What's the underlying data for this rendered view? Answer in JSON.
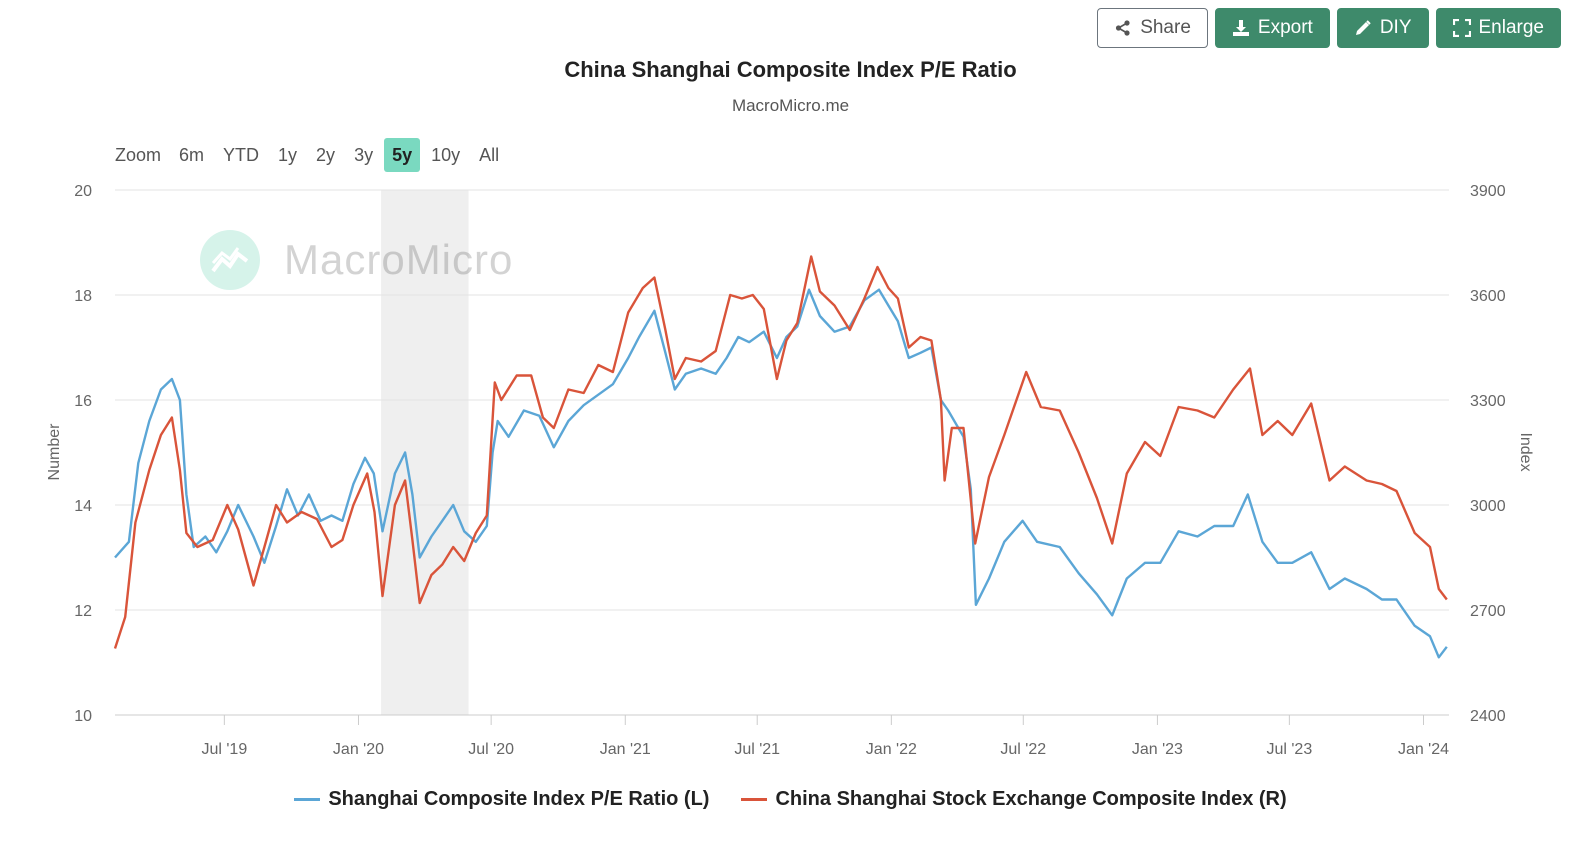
{
  "toolbar": {
    "share": "Share",
    "export": "Export",
    "diy": "DIY",
    "enlarge": "Enlarge"
  },
  "watermark": "MacroMicro",
  "zoom": {
    "label": "Zoom",
    "options": [
      "6m",
      "YTD",
      "1y",
      "2y",
      "3y",
      "5y",
      "10y",
      "All"
    ],
    "active": "5y"
  },
  "colors": {
    "pe": "#5ba6d6",
    "index": "#d9543a",
    "accent": "#3e8a6b",
    "zoom_active": "#7ad9c0"
  },
  "chart_data": {
    "type": "line",
    "title": "China Shanghai Composite Index P/E Ratio",
    "subtitle": "MacroMicro.me",
    "ylabel_left": "Number",
    "ylabel_right": "Index",
    "ylim_left": [
      10,
      20
    ],
    "ylim_right": [
      2400,
      3900
    ],
    "yticks_left": [
      10,
      12,
      14,
      16,
      18,
      20
    ],
    "yticks_right": [
      2400,
      2700,
      3000,
      3300,
      3600,
      3900
    ],
    "xlim": [
      "2019-02-01",
      "2024-02-05"
    ],
    "xticks": [
      {
        "date": "2019-07-01",
        "label": "Jul '19"
      },
      {
        "date": "2020-01-01",
        "label": "Jan '20"
      },
      {
        "date": "2020-07-01",
        "label": "Jul '20"
      },
      {
        "date": "2021-01-01",
        "label": "Jan '21"
      },
      {
        "date": "2021-07-01",
        "label": "Jul '21"
      },
      {
        "date": "2022-01-01",
        "label": "Jan '22"
      },
      {
        "date": "2022-07-01",
        "label": "Jul '22"
      },
      {
        "date": "2023-01-01",
        "label": "Jan '23"
      },
      {
        "date": "2023-07-01",
        "label": "Jul '23"
      },
      {
        "date": "2024-01-01",
        "label": "Jan '24"
      }
    ],
    "shaded_region": [
      "2020-02-01",
      "2020-05-31"
    ],
    "grid": true,
    "legend": "bottom-center",
    "series": [
      {
        "name": "Shanghai Composite Index P/E Ratio (L)",
        "axis": "left",
        "points": [
          [
            "2019-02-01",
            13.0
          ],
          [
            "2019-02-20",
            13.3
          ],
          [
            "2019-03-05",
            14.8
          ],
          [
            "2019-03-20",
            15.6
          ],
          [
            "2019-04-05",
            16.2
          ],
          [
            "2019-04-20",
            16.4
          ],
          [
            "2019-05-01",
            16.0
          ],
          [
            "2019-05-10",
            14.2
          ],
          [
            "2019-05-20",
            13.2
          ],
          [
            "2019-06-05",
            13.4
          ],
          [
            "2019-06-20",
            13.1
          ],
          [
            "2019-07-05",
            13.5
          ],
          [
            "2019-07-20",
            14.0
          ],
          [
            "2019-08-10",
            13.4
          ],
          [
            "2019-08-25",
            12.9
          ],
          [
            "2019-09-10",
            13.6
          ],
          [
            "2019-09-25",
            14.3
          ],
          [
            "2019-10-10",
            13.8
          ],
          [
            "2019-10-25",
            14.2
          ],
          [
            "2019-11-10",
            13.7
          ],
          [
            "2019-11-25",
            13.8
          ],
          [
            "2019-12-10",
            13.7
          ],
          [
            "2019-12-25",
            14.4
          ],
          [
            "2020-01-10",
            14.9
          ],
          [
            "2020-01-22",
            14.6
          ],
          [
            "2020-02-03",
            13.5
          ],
          [
            "2020-02-20",
            14.6
          ],
          [
            "2020-03-05",
            15.0
          ],
          [
            "2020-03-15",
            14.2
          ],
          [
            "2020-03-25",
            13.0
          ],
          [
            "2020-04-10",
            13.4
          ],
          [
            "2020-04-25",
            13.7
          ],
          [
            "2020-05-10",
            14.0
          ],
          [
            "2020-05-25",
            13.5
          ],
          [
            "2020-06-10",
            13.3
          ],
          [
            "2020-06-25",
            13.6
          ],
          [
            "2020-07-03",
            15.0
          ],
          [
            "2020-07-10",
            15.6
          ],
          [
            "2020-07-25",
            15.3
          ],
          [
            "2020-08-15",
            15.8
          ],
          [
            "2020-09-05",
            15.7
          ],
          [
            "2020-09-25",
            15.1
          ],
          [
            "2020-10-15",
            15.6
          ],
          [
            "2020-11-05",
            15.9
          ],
          [
            "2020-11-25",
            16.1
          ],
          [
            "2020-12-15",
            16.3
          ],
          [
            "2021-01-05",
            16.8
          ],
          [
            "2021-01-20",
            17.2
          ],
          [
            "2021-02-10",
            17.7
          ],
          [
            "2021-02-25",
            16.9
          ],
          [
            "2021-03-10",
            16.2
          ],
          [
            "2021-03-25",
            16.5
          ],
          [
            "2021-04-15",
            16.6
          ],
          [
            "2021-05-05",
            16.5
          ],
          [
            "2021-05-20",
            16.8
          ],
          [
            "2021-06-05",
            17.2
          ],
          [
            "2021-06-20",
            17.1
          ],
          [
            "2021-07-10",
            17.3
          ],
          [
            "2021-07-28",
            16.8
          ],
          [
            "2021-08-10",
            17.2
          ],
          [
            "2021-08-25",
            17.4
          ],
          [
            "2021-09-10",
            18.1
          ],
          [
            "2021-09-25",
            17.6
          ],
          [
            "2021-10-15",
            17.3
          ],
          [
            "2021-11-05",
            17.4
          ],
          [
            "2021-11-25",
            17.9
          ],
          [
            "2021-12-15",
            18.1
          ],
          [
            "2021-12-28",
            17.8
          ],
          [
            "2022-01-10",
            17.5
          ],
          [
            "2022-01-25",
            16.8
          ],
          [
            "2022-02-10",
            16.9
          ],
          [
            "2022-02-25",
            17.0
          ],
          [
            "2022-03-10",
            16.0
          ],
          [
            "2022-03-20",
            15.8
          ],
          [
            "2022-04-10",
            15.3
          ],
          [
            "2022-04-20",
            14.3
          ],
          [
            "2022-04-27",
            12.1
          ],
          [
            "2022-05-15",
            12.6
          ],
          [
            "2022-06-05",
            13.3
          ],
          [
            "2022-06-30",
            13.7
          ],
          [
            "2022-07-20",
            13.3
          ],
          [
            "2022-08-20",
            13.2
          ],
          [
            "2022-09-15",
            12.7
          ],
          [
            "2022-10-10",
            12.3
          ],
          [
            "2022-10-31",
            11.9
          ],
          [
            "2022-11-20",
            12.6
          ],
          [
            "2022-12-15",
            12.9
          ],
          [
            "2023-01-05",
            12.9
          ],
          [
            "2023-01-30",
            13.5
          ],
          [
            "2023-02-25",
            13.4
          ],
          [
            "2023-03-20",
            13.6
          ],
          [
            "2023-04-15",
            13.6
          ],
          [
            "2023-05-05",
            14.2
          ],
          [
            "2023-05-25",
            13.3
          ],
          [
            "2023-06-15",
            12.9
          ],
          [
            "2023-07-05",
            12.9
          ],
          [
            "2023-07-31",
            13.1
          ],
          [
            "2023-08-25",
            12.4
          ],
          [
            "2023-09-15",
            12.6
          ],
          [
            "2023-10-15",
            12.4
          ],
          [
            "2023-11-05",
            12.2
          ],
          [
            "2023-11-25",
            12.2
          ],
          [
            "2023-12-20",
            11.7
          ],
          [
            "2024-01-10",
            11.5
          ],
          [
            "2024-01-22",
            11.1
          ],
          [
            "2024-02-02",
            11.3
          ]
        ]
      },
      {
        "name": "China Shanghai Stock Exchange Composite Index (R)",
        "axis": "right",
        "points": [
          [
            "2019-02-01",
            2590
          ],
          [
            "2019-02-15",
            2680
          ],
          [
            "2019-03-01",
            2950
          ],
          [
            "2019-03-20",
            3100
          ],
          [
            "2019-04-05",
            3200
          ],
          [
            "2019-04-20",
            3250
          ],
          [
            "2019-05-01",
            3100
          ],
          [
            "2019-05-10",
            2920
          ],
          [
            "2019-05-25",
            2880
          ],
          [
            "2019-06-15",
            2900
          ],
          [
            "2019-07-05",
            3000
          ],
          [
            "2019-07-20",
            2930
          ],
          [
            "2019-08-10",
            2770
          ],
          [
            "2019-08-25",
            2880
          ],
          [
            "2019-09-10",
            3000
          ],
          [
            "2019-09-25",
            2950
          ],
          [
            "2019-10-15",
            2980
          ],
          [
            "2019-11-05",
            2960
          ],
          [
            "2019-11-25",
            2880
          ],
          [
            "2019-12-10",
            2900
          ],
          [
            "2019-12-25",
            3000
          ],
          [
            "2020-01-13",
            3090
          ],
          [
            "2020-01-23",
            2980
          ],
          [
            "2020-02-03",
            2740
          ],
          [
            "2020-02-20",
            3000
          ],
          [
            "2020-03-05",
            3070
          ],
          [
            "2020-03-15",
            2900
          ],
          [
            "2020-03-25",
            2720
          ],
          [
            "2020-04-10",
            2800
          ],
          [
            "2020-04-25",
            2830
          ],
          [
            "2020-05-10",
            2880
          ],
          [
            "2020-05-25",
            2840
          ],
          [
            "2020-06-10",
            2920
          ],
          [
            "2020-06-25",
            2970
          ],
          [
            "2020-07-06",
            3350
          ],
          [
            "2020-07-15",
            3300
          ],
          [
            "2020-08-05",
            3370
          ],
          [
            "2020-08-25",
            3370
          ],
          [
            "2020-09-10",
            3250
          ],
          [
            "2020-09-25",
            3220
          ],
          [
            "2020-10-15",
            3330
          ],
          [
            "2020-11-05",
            3320
          ],
          [
            "2020-11-25",
            3400
          ],
          [
            "2020-12-15",
            3380
          ],
          [
            "2021-01-05",
            3550
          ],
          [
            "2021-01-25",
            3620
          ],
          [
            "2021-02-10",
            3650
          ],
          [
            "2021-02-25",
            3500
          ],
          [
            "2021-03-10",
            3360
          ],
          [
            "2021-03-25",
            3420
          ],
          [
            "2021-04-15",
            3410
          ],
          [
            "2021-05-05",
            3440
          ],
          [
            "2021-05-25",
            3600
          ],
          [
            "2021-06-10",
            3590
          ],
          [
            "2021-06-25",
            3600
          ],
          [
            "2021-07-10",
            3560
          ],
          [
            "2021-07-28",
            3360
          ],
          [
            "2021-08-10",
            3470
          ],
          [
            "2021-08-25",
            3520
          ],
          [
            "2021-09-13",
            3710
          ],
          [
            "2021-09-25",
            3610
          ],
          [
            "2021-10-15",
            3570
          ],
          [
            "2021-11-05",
            3500
          ],
          [
            "2021-11-25",
            3590
          ],
          [
            "2021-12-13",
            3680
          ],
          [
            "2021-12-28",
            3620
          ],
          [
            "2022-01-10",
            3590
          ],
          [
            "2022-01-25",
            3450
          ],
          [
            "2022-02-10",
            3480
          ],
          [
            "2022-02-25",
            3470
          ],
          [
            "2022-03-10",
            3300
          ],
          [
            "2022-03-15",
            3070
          ],
          [
            "2022-03-25",
            3220
          ],
          [
            "2022-04-10",
            3220
          ],
          [
            "2022-04-26",
            2890
          ],
          [
            "2022-05-15",
            3080
          ],
          [
            "2022-06-05",
            3200
          ],
          [
            "2022-07-05",
            3380
          ],
          [
            "2022-07-25",
            3280
          ],
          [
            "2022-08-20",
            3270
          ],
          [
            "2022-09-15",
            3150
          ],
          [
            "2022-10-10",
            3020
          ],
          [
            "2022-10-31",
            2890
          ],
          [
            "2022-11-20",
            3090
          ],
          [
            "2022-12-15",
            3180
          ],
          [
            "2023-01-05",
            3140
          ],
          [
            "2023-01-30",
            3280
          ],
          [
            "2023-02-25",
            3270
          ],
          [
            "2023-03-20",
            3250
          ],
          [
            "2023-04-15",
            3330
          ],
          [
            "2023-05-08",
            3390
          ],
          [
            "2023-05-25",
            3200
          ],
          [
            "2023-06-15",
            3240
          ],
          [
            "2023-07-05",
            3200
          ],
          [
            "2023-07-31",
            3290
          ],
          [
            "2023-08-25",
            3070
          ],
          [
            "2023-09-15",
            3110
          ],
          [
            "2023-10-15",
            3070
          ],
          [
            "2023-11-05",
            3060
          ],
          [
            "2023-11-25",
            3040
          ],
          [
            "2023-12-20",
            2920
          ],
          [
            "2024-01-10",
            2880
          ],
          [
            "2024-01-22",
            2760
          ],
          [
            "2024-02-02",
            2730
          ]
        ]
      }
    ]
  }
}
